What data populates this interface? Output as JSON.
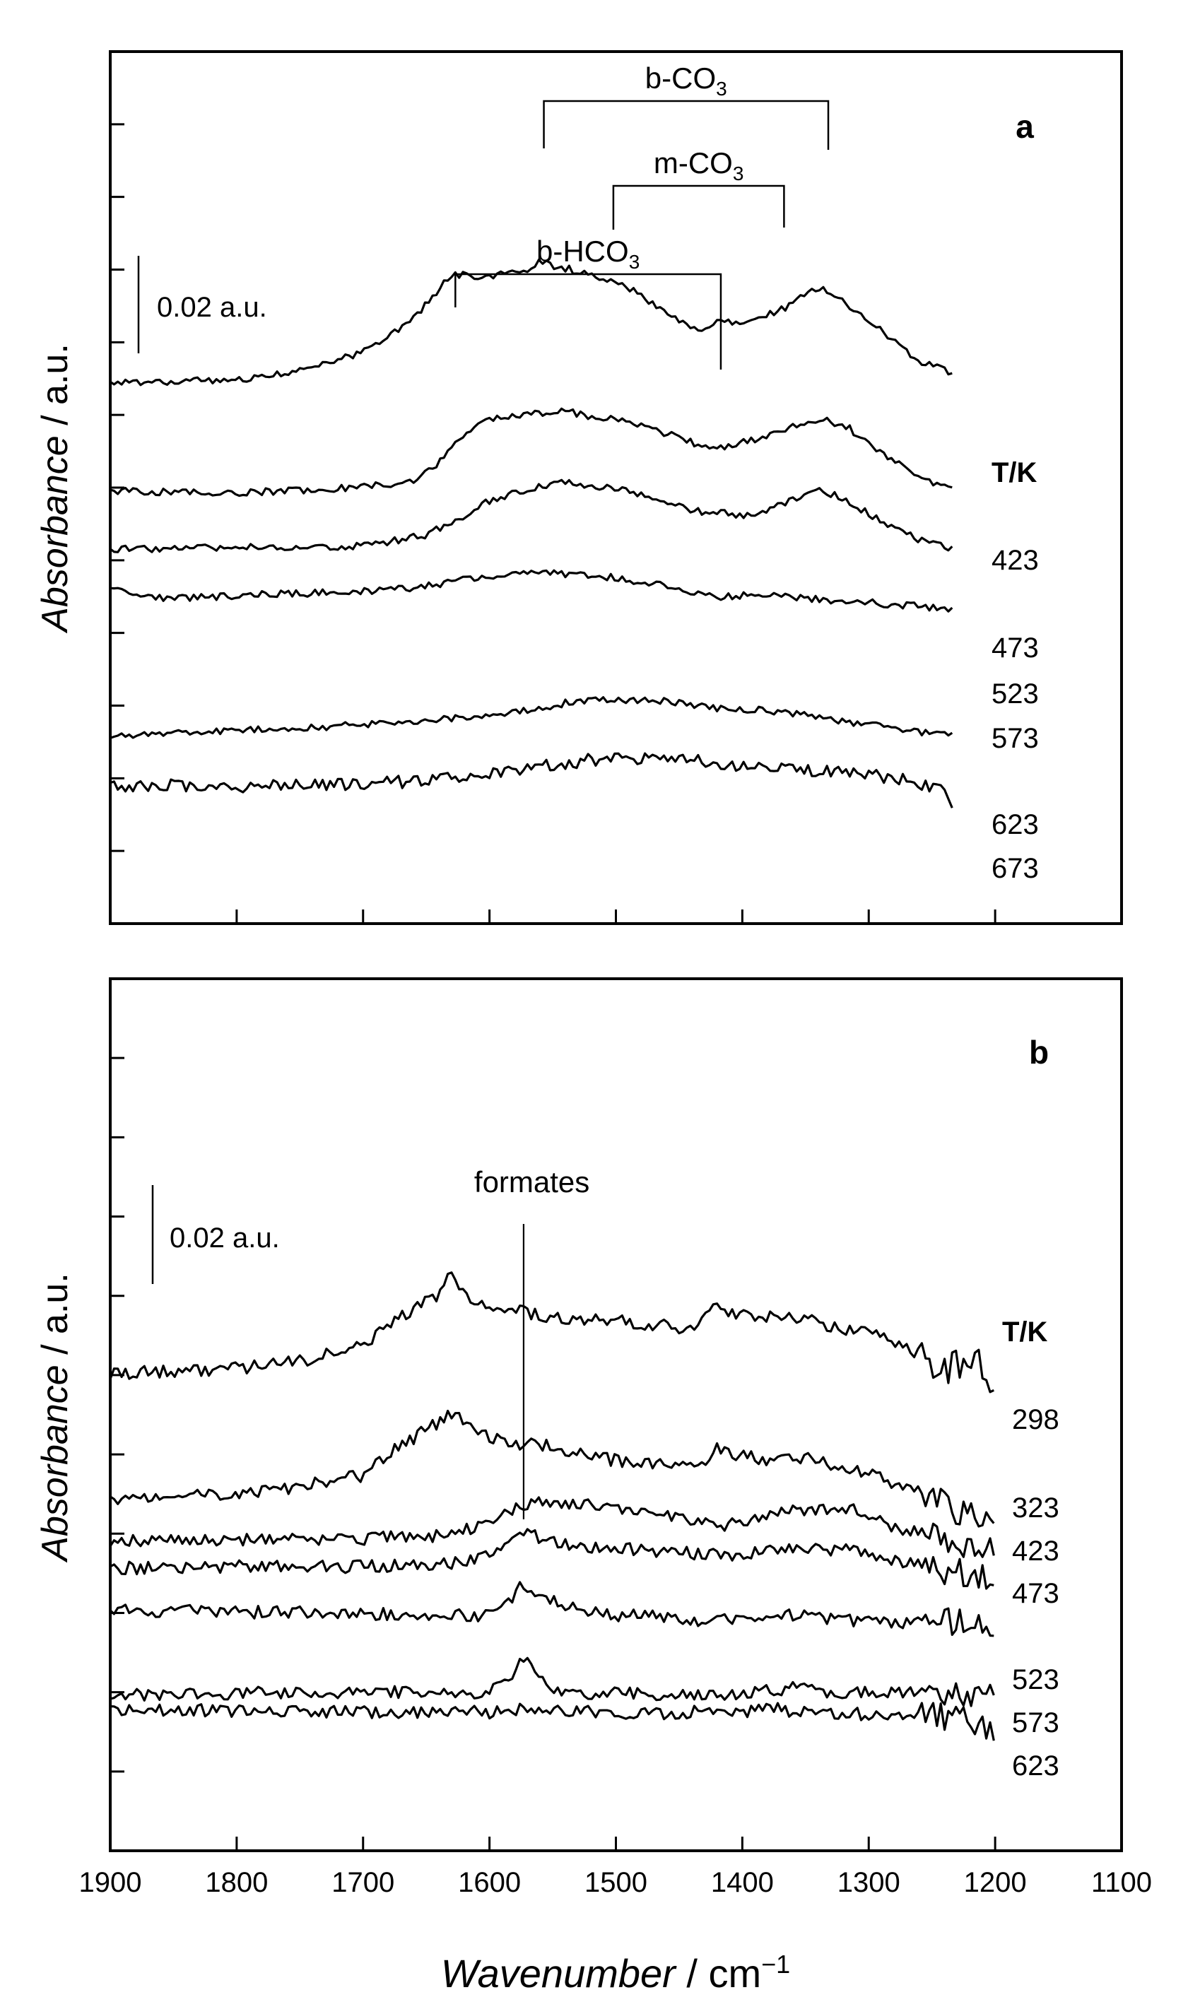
{
  "figure": {
    "xlabel_italic": "Wavenumber",
    "xlabel_unit": " / cm",
    "xlabel_exp": "−1",
    "ylabel_italic": "Absorbance",
    "ylabel_unit": " / a.u.",
    "colors": {
      "line": "#000000",
      "background": "#ffffff"
    }
  },
  "chart_data": [
    {
      "type": "line",
      "panel_label": "a",
      "title": "",
      "xlabel": "Wavenumber / cm−1",
      "ylabel": "Absorbance / a.u.",
      "xlim": [
        1900,
        1100
      ],
      "x_ticks": [
        1900,
        1800,
        1700,
        1600,
        1500,
        1400,
        1300,
        1200,
        1100
      ],
      "scale_bar": "0.02 a.u.",
      "temperature_header": "T/K",
      "legend_labels": [
        "423",
        "473",
        "523",
        "573",
        "623",
        "673"
      ],
      "annotations": [
        {
          "text": "b-CO",
          "sub": "3",
          "x1": 1557,
          "x2": 1332
        },
        {
          "text": "m-CO",
          "sub": "3",
          "x1": 1502,
          "x2": 1367
        },
        {
          "text": "b-HCO",
          "sub": "3",
          "x1": 1627,
          "x2": 1417
        }
      ],
      "series": [
        {
          "name": "423",
          "x": [
            1900,
            1800,
            1760,
            1700,
            1660,
            1640,
            1630,
            1620,
            1600,
            1575,
            1560,
            1535,
            1510,
            1490,
            1470,
            1450,
            1435,
            1420,
            1400,
            1380,
            1360,
            1340,
            1320,
            1300,
            1280,
            1260,
            1232
          ],
          "y": [
            0.1,
            0.3,
            0.7,
            1.8,
            3.7,
            5.3,
            6.1,
            6.1,
            6.0,
            6.3,
            6.8,
            6.4,
            5.9,
            5.4,
            4.5,
            3.6,
            2.9,
            3.6,
            3.5,
            3.9,
            4.5,
            5.5,
            4.6,
            3.6,
            2.4,
            1.3,
            0.6
          ]
        },
        {
          "name": "473",
          "x": [
            1900,
            1800,
            1700,
            1660,
            1640,
            1625,
            1600,
            1580,
            1560,
            1540,
            1520,
            1500,
            1480,
            1460,
            1440,
            1420,
            1400,
            1380,
            1360,
            1340,
            1320,
            1300,
            1280,
            1260,
            1232
          ],
          "y": [
            0.2,
            0.1,
            0.4,
            0.8,
            1.8,
            3.2,
            4.2,
            4.4,
            4.5,
            4.7,
            4.3,
            4.2,
            3.8,
            3.4,
            2.9,
            2.6,
            2.9,
            3.3,
            3.8,
            4.2,
            3.9,
            2.9,
            1.9,
            0.9,
            0.3
          ]
        },
        {
          "name": "523",
          "x": [
            1900,
            1800,
            1700,
            1650,
            1620,
            1600,
            1580,
            1560,
            1540,
            1520,
            1500,
            1480,
            1460,
            1440,
            1420,
            1400,
            1380,
            1360,
            1340,
            1320,
            1300,
            1280,
            1260,
            1232
          ],
          "y": [
            -0.1,
            0.0,
            0.1,
            0.7,
            1.8,
            2.6,
            3.0,
            3.4,
            3.7,
            3.4,
            3.3,
            3.0,
            2.6,
            2.0,
            2.0,
            1.8,
            2.1,
            2.7,
            3.3,
            2.7,
            1.9,
            1.1,
            0.4,
            -0.1
          ]
        },
        {
          "name": "573",
          "x": [
            1900,
            1850,
            1800,
            1700,
            1650,
            1620,
            1600,
            1580,
            1560,
            1540,
            1500,
            1460,
            1440,
            1420,
            1400,
            1380,
            1360,
            1340,
            1300,
            1260,
            1232
          ],
          "y": [
            0.4,
            -0.1,
            0.1,
            0.3,
            0.6,
            1.0,
            1.0,
            1.3,
            1.4,
            1.3,
            1.1,
            0.6,
            0.3,
            0.0,
            0.1,
            0.1,
            0.0,
            -0.1,
            -0.3,
            -0.5,
            -0.8
          ]
        },
        {
          "name": "623",
          "x": [
            1900,
            1850,
            1800,
            1750,
            1700,
            1650,
            1620,
            1600,
            1580,
            1560,
            1540,
            1500,
            1460,
            1440,
            1420,
            1400,
            1380,
            1360,
            1340,
            1300,
            1260,
            1232
          ],
          "y": [
            -1.6,
            -1.5,
            -1.3,
            -1.2,
            -1.0,
            -0.8,
            -0.6,
            -0.5,
            -0.3,
            -0.1,
            0.2,
            0.4,
            0.3,
            0.1,
            -0.1,
            -0.2,
            -0.2,
            -0.4,
            -0.6,
            -1.0,
            -1.4,
            -1.5
          ]
        },
        {
          "name": "673",
          "x": [
            1900,
            1850,
            1800,
            1750,
            1700,
            1660,
            1640,
            1620,
            1600,
            1580,
            1560,
            1540,
            1520,
            1500,
            1480,
            1460,
            1440,
            1420,
            1400,
            1380,
            1360,
            1340,
            1320,
            1300,
            1280,
            1260,
            1240,
            1232
          ],
          "y": [
            -2.0,
            -2.0,
            -2.1,
            -2.0,
            -1.9,
            -1.8,
            -1.7,
            -1.5,
            -1.4,
            -1.2,
            -1.0,
            -0.8,
            -0.6,
            -0.5,
            -0.5,
            -0.5,
            -0.6,
            -0.8,
            -0.9,
            -1.0,
            -1.0,
            -1.2,
            -1.3,
            -1.4,
            -1.6,
            -1.9,
            -2.2,
            -3.2
          ]
        }
      ]
    },
    {
      "type": "line",
      "panel_label": "b",
      "title": "",
      "xlabel": "Wavenumber / cm−1",
      "ylabel": "Absorbance / a.u.",
      "xlim": [
        1900,
        1100
      ],
      "x_ticks": [
        1900,
        1800,
        1700,
        1600,
        1500,
        1400,
        1300,
        1200,
        1100
      ],
      "scale_bar": "0.02 a.u.",
      "temperature_header": "T/K",
      "legend_labels": [
        "298",
        "323",
        "423",
        "473",
        "523",
        "573",
        "623"
      ],
      "annotations": [
        {
          "text": "formates",
          "x": 1573
        }
      ],
      "series": [
        {
          "name": "298",
          "x": [
            1900,
            1800,
            1750,
            1700,
            1680,
            1660,
            1640,
            1632,
            1620,
            1600,
            1580,
            1560,
            1540,
            1500,
            1460,
            1440,
            1430,
            1420,
            1400,
            1380,
            1360,
            1340,
            1320,
            1300,
            1280,
            1260,
            1245,
            1230,
            1220,
            1210,
            1200
          ],
          "y": [
            0.3,
            0.6,
            1.0,
            2.0,
            3.4,
            4.2,
            5.2,
            6.3,
            5.1,
            4.5,
            4.2,
            3.9,
            3.6,
            3.5,
            3.2,
            2.9,
            3.6,
            4.4,
            3.9,
            3.7,
            3.8,
            3.4,
            3.0,
            2.9,
            2.2,
            1.5,
            0.4,
            0.8,
            1.6,
            0.6,
            -0.8
          ]
        },
        {
          "name": "323",
          "x": [
            1900,
            1800,
            1750,
            1700,
            1680,
            1660,
            1640,
            1632,
            1620,
            1600,
            1580,
            1560,
            1540,
            1500,
            1460,
            1440,
            1430,
            1420,
            1400,
            1380,
            1360,
            1340,
            1320,
            1300,
            1280,
            1260,
            1245,
            1230,
            1220,
            1210,
            1200
          ],
          "y": [
            0.0,
            0.3,
            0.7,
            1.4,
            2.8,
            3.7,
            4.7,
            5.3,
            4.7,
            3.8,
            3.4,
            3.3,
            2.9,
            2.3,
            2.0,
            1.9,
            2.3,
            3.0,
            2.6,
            2.4,
            2.6,
            2.3,
            1.9,
            1.5,
            0.9,
            0.4,
            -0.3,
            -0.8,
            -0.4,
            -1.6,
            -2.0
          ]
        },
        {
          "name": "423",
          "x": [
            1900,
            1800,
            1700,
            1640,
            1610,
            1590,
            1573,
            1560,
            1540,
            1520,
            1500,
            1470,
            1440,
            1420,
            1400,
            1380,
            1360,
            1340,
            1320,
            1300,
            1280,
            1260,
            1240,
            1220,
            1200
          ],
          "y": [
            -1.3,
            -1.3,
            -1.2,
            -1.0,
            -0.5,
            0.3,
            0.9,
            1.1,
            1.1,
            0.8,
            0.6,
            0.3,
            -0.2,
            -0.4,
            -0.2,
            0.1,
            0.5,
            0.6,
            0.8,
            0.2,
            -0.5,
            -0.9,
            -1.3,
            -1.5,
            -1.8
          ]
        },
        {
          "name": "473",
          "x": [
            1900,
            1800,
            1700,
            1640,
            1610,
            1590,
            1573,
            1560,
            1540,
            1520,
            1500,
            1470,
            1440,
            1420,
            1400,
            1380,
            1360,
            1340,
            1320,
            1300,
            1280,
            1260,
            1240,
            1220,
            1200
          ],
          "y": [
            -1.7,
            -1.6,
            -1.6,
            -1.5,
            -1.1,
            -0.4,
            0.6,
            0.2,
            -0.2,
            -0.4,
            -0.5,
            -0.6,
            -0.8,
            -0.9,
            -0.8,
            -0.6,
            -0.5,
            -0.6,
            -0.5,
            -0.9,
            -1.2,
            -1.5,
            -1.8,
            -2.0,
            -2.1
          ]
        },
        {
          "name": "523",
          "x": [
            1900,
            1800,
            1700,
            1640,
            1600,
            1585,
            1573,
            1560,
            1540,
            1520,
            1500,
            1470,
            1440,
            1420,
            1400,
            1380,
            1360,
            1340,
            1320,
            1300,
            1280,
            1260,
            1240,
            1220,
            1200
          ],
          "y": [
            -1.9,
            -2.0,
            -2.1,
            -2.2,
            -2.2,
            -1.5,
            -0.2,
            -1.0,
            -1.6,
            -2.0,
            -2.2,
            -2.3,
            -2.5,
            -2.6,
            -2.4,
            -2.2,
            -2.2,
            -2.4,
            -2.5,
            -2.6,
            -2.6,
            -2.7,
            -2.7,
            -2.8,
            -2.9
          ]
        },
        {
          "name": "573",
          "x": [
            1900,
            1800,
            1700,
            1640,
            1600,
            1585,
            1573,
            1560,
            1540,
            1520,
            1500,
            1470,
            1440,
            1420,
            1400,
            1380,
            1360,
            1340,
            1320,
            1300,
            1280,
            1260,
            1240,
            1220,
            1200
          ],
          "y": [
            -3.2,
            -3.1,
            -3.0,
            -3.1,
            -3.0,
            -2.2,
            -1.0,
            -2.3,
            -3.0,
            -3.1,
            -3.1,
            -3.2,
            -3.2,
            -3.2,
            -3.1,
            -2.9,
            -2.8,
            -3.0,
            -3.1,
            -3.0,
            -3.0,
            -3.0,
            -3.1,
            -3.2,
            -3.3
          ]
        },
        {
          "name": "623",
          "x": [
            1900,
            1800,
            1700,
            1640,
            1600,
            1573,
            1540,
            1500,
            1470,
            1440,
            1420,
            1400,
            1380,
            1360,
            1340,
            1320,
            1300,
            1280,
            1260,
            1240,
            1220,
            1210,
            1200
          ],
          "y": [
            -3.5,
            -3.5,
            -3.6,
            -3.6,
            -3.6,
            -3.4,
            -3.6,
            -3.6,
            -3.7,
            -3.6,
            -3.6,
            -3.6,
            -3.3,
            -3.6,
            -3.7,
            -3.7,
            -3.7,
            -3.7,
            -3.7,
            -4.0,
            -4.1,
            -4.5,
            -4.7
          ]
        }
      ]
    }
  ]
}
